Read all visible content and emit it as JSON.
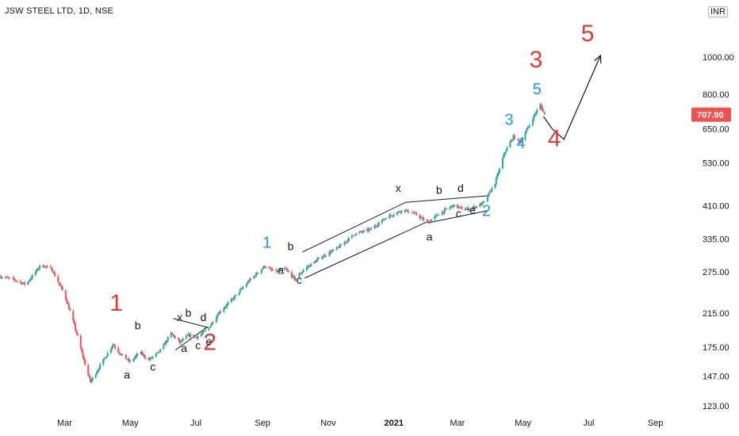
{
  "chart_data": {
    "type": "candlestick",
    "symbol_label": "JSW STEEL LTD, 1D, NSE",
    "currency": "INR",
    "y_scale": "log",
    "ylim": [
      123,
      1300
    ],
    "y_ticks": [
      "1000.00",
      "800.00",
      "650.00",
      "530.00",
      "410.00",
      "335.00",
      "275.00",
      "215.00",
      "175.00",
      "147.00",
      "123.00"
    ],
    "y_tick_values": [
      1000,
      800,
      650,
      530,
      410,
      335,
      275,
      215,
      175,
      147,
      123
    ],
    "x_ticks": [
      "Mar",
      "May",
      "Jul",
      "Sep",
      "Nov",
      "2021",
      "Mar",
      "May",
      "Jul",
      "Sep"
    ],
    "x_tick_dates": [
      "2020-03-01",
      "2020-05-01",
      "2020-07-01",
      "2020-09-01",
      "2020-11-01",
      "2021-01-01",
      "2021-03-01",
      "2021-05-01",
      "2021-07-01",
      "2021-09-01"
    ],
    "xlim": [
      "2020-01-01",
      "2021-09-30"
    ],
    "last_price": "707.90",
    "last_price_value": 707.9,
    "colors": {
      "up": "#26a69a",
      "down": "#ef5350",
      "red_label": "#e53935",
      "blue_label": "#2196f3",
      "line": "#131722"
    },
    "price_path": [
      [
        "2020-01-01",
        268
      ],
      [
        "2020-01-15",
        262
      ],
      [
        "2020-01-25",
        255
      ],
      [
        "2020-02-08",
        287
      ],
      [
        "2020-02-18",
        280
      ],
      [
        "2020-03-01",
        240
      ],
      [
        "2020-03-10",
        200
      ],
      [
        "2020-03-20",
        158
      ],
      [
        "2020-03-25",
        142
      ],
      [
        "2020-04-05",
        160
      ],
      [
        "2020-04-15",
        178
      ],
      [
        "2020-04-22",
        168
      ],
      [
        "2020-05-01",
        160
      ],
      [
        "2020-05-10",
        170
      ],
      [
        "2020-05-18",
        162
      ],
      [
        "2020-05-28",
        170
      ],
      [
        "2020-06-08",
        190
      ],
      [
        "2020-06-16",
        180
      ],
      [
        "2020-06-24",
        188
      ],
      [
        "2020-07-02",
        186
      ],
      [
        "2020-07-12",
        195
      ],
      [
        "2020-07-22",
        215
      ],
      [
        "2020-08-05",
        235
      ],
      [
        "2020-08-20",
        262
      ],
      [
        "2020-09-03",
        285
      ],
      [
        "2020-09-12",
        275
      ],
      [
        "2020-09-22",
        280
      ],
      [
        "2020-10-01",
        263
      ],
      [
        "2020-10-10",
        280
      ],
      [
        "2020-10-25",
        300
      ],
      [
        "2020-11-10",
        318
      ],
      [
        "2020-11-25",
        345
      ],
      [
        "2020-12-10",
        355
      ],
      [
        "2020-12-25",
        382
      ],
      [
        "2021-01-10",
        400
      ],
      [
        "2021-01-22",
        388
      ],
      [
        "2021-02-01",
        370
      ],
      [
        "2021-02-12",
        390
      ],
      [
        "2021-02-25",
        410
      ],
      [
        "2021-03-08",
        400
      ],
      [
        "2021-03-18",
        407
      ],
      [
        "2021-03-26",
        418
      ],
      [
        "2021-04-05",
        470
      ],
      [
        "2021-04-14",
        565
      ],
      [
        "2021-04-22",
        620
      ],
      [
        "2021-04-28",
        600
      ],
      [
        "2021-05-05",
        650
      ],
      [
        "2021-05-12",
        710
      ],
      [
        "2021-05-17",
        750
      ],
      [
        "2021-05-21",
        707.9
      ]
    ],
    "wave_labels": [
      {
        "text": "1",
        "date": "2020-04-18",
        "price": 218,
        "color": "red"
      },
      {
        "text": "2",
        "date": "2020-07-14",
        "price": 172,
        "color": "red"
      },
      {
        "text": "3",
        "date": "2021-05-13",
        "price": 940,
        "color": "red"
      },
      {
        "text": "4",
        "date": "2021-05-30",
        "price": 585,
        "color": "red"
      },
      {
        "text": "5",
        "date": "2021-06-30",
        "price": 1100,
        "color": "red"
      },
      {
        "text": "1",
        "date": "2020-09-05",
        "price": 318,
        "color": "blue"
      },
      {
        "text": "2",
        "date": "2021-03-28",
        "price": 385,
        "color": "blue"
      },
      {
        "text": "3",
        "date": "2021-04-18",
        "price": 665,
        "color": "blue"
      },
      {
        "text": "4",
        "date": "2021-04-29",
        "price": 578,
        "color": "blue"
      },
      {
        "text": "5",
        "date": "2021-05-14",
        "price": 800,
        "color": "blue"
      },
      {
        "text": "a",
        "date": "2020-04-28",
        "price": 145,
        "color": "black"
      },
      {
        "text": "b",
        "date": "2020-05-08",
        "price": 195,
        "color": "black"
      },
      {
        "text": "c",
        "date": "2020-05-22",
        "price": 152,
        "color": "black"
      },
      {
        "text": "x",
        "date": "2020-06-16",
        "price": 205,
        "color": "black"
      },
      {
        "text": "a",
        "date": "2020-06-20",
        "price": 170,
        "color": "black"
      },
      {
        "text": "b",
        "date": "2020-06-24",
        "price": 210,
        "color": "black"
      },
      {
        "text": "c",
        "date": "2020-07-03",
        "price": 173,
        "color": "black"
      },
      {
        "text": "d",
        "date": "2020-07-08",
        "price": 205,
        "color": "black"
      },
      {
        "text": "e",
        "date": "2020-07-13",
        "price": 177,
        "color": "black"
      },
      {
        "text": "b",
        "date": "2020-09-27",
        "price": 314,
        "color": "black"
      },
      {
        "text": "a",
        "date": "2020-09-18",
        "price": 272,
        "color": "black"
      },
      {
        "text": "c",
        "date": "2020-10-05",
        "price": 256,
        "color": "black"
      },
      {
        "text": "x",
        "date": "2021-01-05",
        "price": 445,
        "color": "black"
      },
      {
        "text": "a",
        "date": "2021-02-03",
        "price": 332,
        "color": "black"
      },
      {
        "text": "b",
        "date": "2021-02-12",
        "price": 440,
        "color": "black"
      },
      {
        "text": "c",
        "date": "2021-03-02",
        "price": 382,
        "color": "black"
      },
      {
        "text": "d",
        "date": "2021-03-04",
        "price": 445,
        "color": "black"
      },
      {
        "text": "e",
        "date": "2021-03-15",
        "price": 390,
        "color": "black"
      }
    ],
    "trendlines": [
      [
        [
          "2020-06-10",
          208
        ],
        [
          "2020-07-12",
          197
        ]
      ],
      [
        [
          "2020-06-12",
          172
        ],
        [
          "2020-07-12",
          198
        ]
      ],
      [
        [
          "2020-10-08",
          310
        ],
        [
          "2021-01-12",
          418
        ]
      ],
      [
        [
          "2020-10-10",
          265
        ],
        [
          "2021-02-01",
          372
        ]
      ],
      [
        [
          "2021-01-12",
          418
        ],
        [
          "2021-03-30",
          435
        ]
      ],
      [
        [
          "2021-02-03",
          370
        ],
        [
          "2021-03-30",
          398
        ]
      ]
    ],
    "projection": [
      [
        "2021-05-20",
        700
      ],
      [
        "2021-05-28",
        650
      ],
      [
        "2021-06-08",
        610
      ],
      [
        "2021-07-12",
        1010
      ]
    ]
  }
}
